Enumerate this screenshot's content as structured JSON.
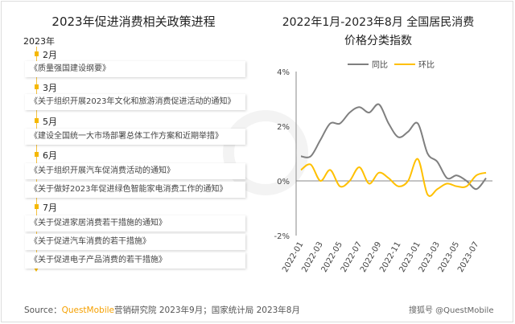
{
  "left": {
    "title": "2023年促进消费相关政策进程",
    "year": "2023年",
    "groups": [
      {
        "month": "2月",
        "items": [
          "《质量强国建设纲要》"
        ]
      },
      {
        "month": "3月",
        "items": [
          "《关于组织开展2023年文化和旅游消费促进活动的通知》"
        ]
      },
      {
        "month": "5月",
        "items": [
          "《建设全国统一大市场部署总体工作方案和近期举措》"
        ]
      },
      {
        "month": "6月",
        "items": [
          "《关于组织开展汽车促消费活动的通知》",
          "《关于做好2023年促进绿色智能家电消费工作的通知》"
        ]
      },
      {
        "month": "7月",
        "items": [
          "《关于促进家居消费若干措施的通知》",
          "《关于促进汽车消费的若干措施》",
          "《关于促进电子产品消费的若干措施》"
        ]
      }
    ]
  },
  "watermark": "QUESTMOBILE",
  "chart_data": {
    "type": "line",
    "title": "2022年1月-2023年8月 全国居民消费价格分类指数",
    "title_lines": [
      "2022年1月-2023年8月 全国居民消费",
      "价格分类指数"
    ],
    "x": [
      "2022-01",
      "2022-02",
      "2022-03",
      "2022-04",
      "2022-05",
      "2022-06",
      "2022-07",
      "2022-08",
      "2022-09",
      "2022-10",
      "2022-11",
      "2022-12",
      "2023-01",
      "2023-02",
      "2023-03",
      "2023-04",
      "2023-05",
      "2023-06",
      "2023-07",
      "2023-08"
    ],
    "xtick_labels": [
      "2022-01",
      "2022-03",
      "2022-05",
      "2022-07",
      "2022-09",
      "2022-11",
      "2023-01",
      "2023-03",
      "2023-05",
      "2023-07"
    ],
    "ylim": [
      -2,
      4
    ],
    "yticks": [
      -2,
      0,
      2,
      4
    ],
    "ytick_labels": [
      "-2%",
      "0%",
      "2%",
      "4%"
    ],
    "legend": "top",
    "grid": false,
    "series": [
      {
        "name": "同比",
        "color": "#7f7f7f",
        "values": [
          0.9,
          0.9,
          1.5,
          2.1,
          2.1,
          2.5,
          2.7,
          2.5,
          2.8,
          2.1,
          1.6,
          1.8,
          2.1,
          1.0,
          0.7,
          0.1,
          0.2,
          0.0,
          -0.3,
          0.1
        ]
      },
      {
        "name": "环比",
        "color": "#ffc000",
        "values": [
          0.4,
          0.6,
          0.0,
          0.4,
          -0.2,
          0.0,
          0.5,
          -0.1,
          0.3,
          0.1,
          -0.2,
          0.0,
          0.8,
          -0.5,
          -0.3,
          -0.1,
          -0.2,
          -0.2,
          0.2,
          0.3
        ]
      }
    ]
  },
  "footer": {
    "source_label": "Source：",
    "brand": "QuestMobile",
    "source_rest": "营销研究院 2023年9月；国家统计局 2023年8月",
    "logo_text": "搜狐号 @QuestMobile"
  }
}
